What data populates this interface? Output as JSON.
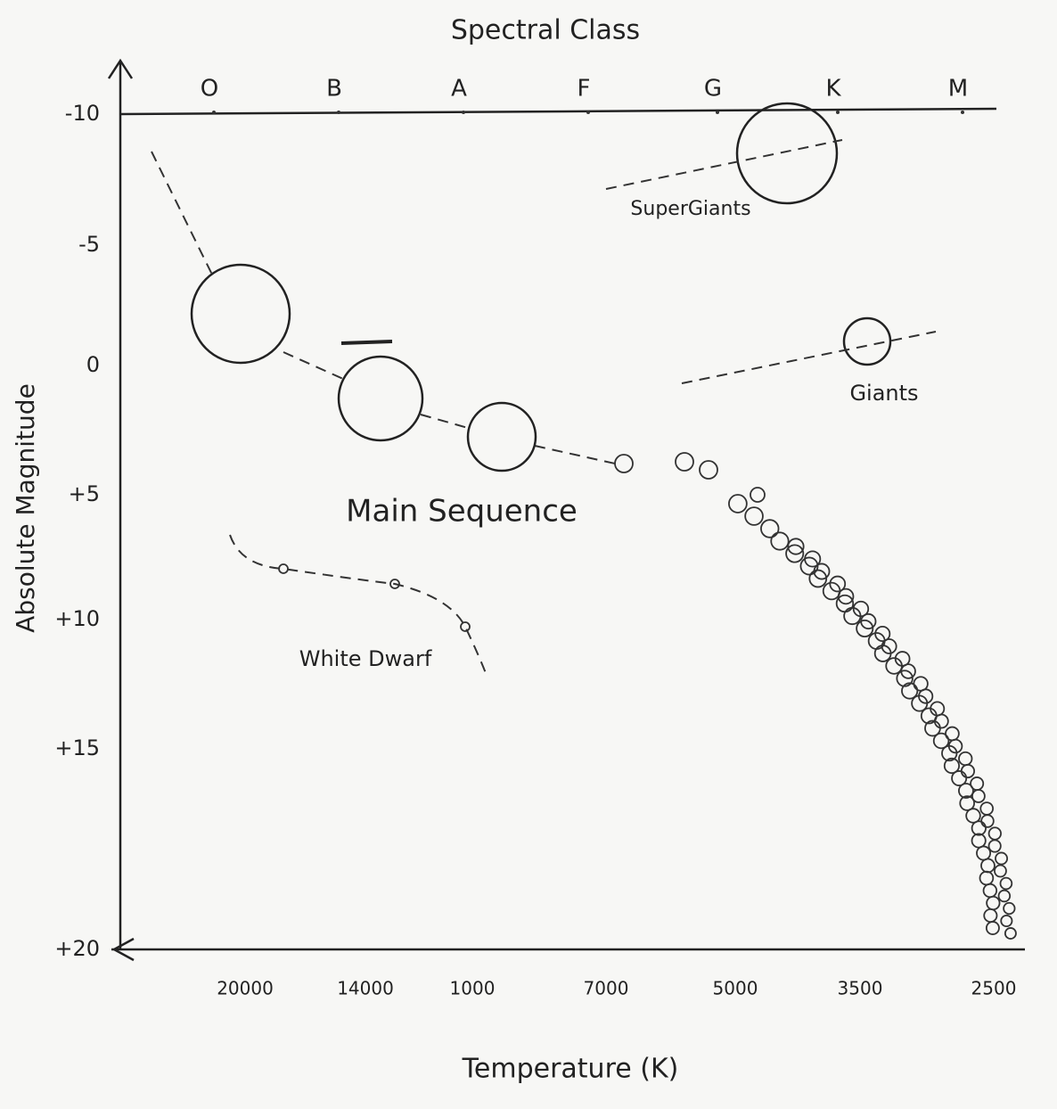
{
  "title": "Spectral Class",
  "spectral_classes": [
    "O",
    "B",
    "A",
    "F",
    "G",
    "K",
    "M"
  ],
  "y_axis": {
    "label": "Absolute Magnitude",
    "ticks": [
      "-10",
      "-5",
      "0",
      "+5",
      "+10",
      "+15",
      "+20"
    ]
  },
  "x_axis": {
    "label": "Temperature (K)",
    "ticks": [
      "20000",
      "14000",
      "1000",
      "7000",
      "5000",
      "3500",
      "2500"
    ]
  },
  "regions": {
    "supergiants": "SuperGiants",
    "giants": "Giants",
    "main_sequence": "Main Sequence",
    "white_dwarf": "White Dwarf"
  }
}
